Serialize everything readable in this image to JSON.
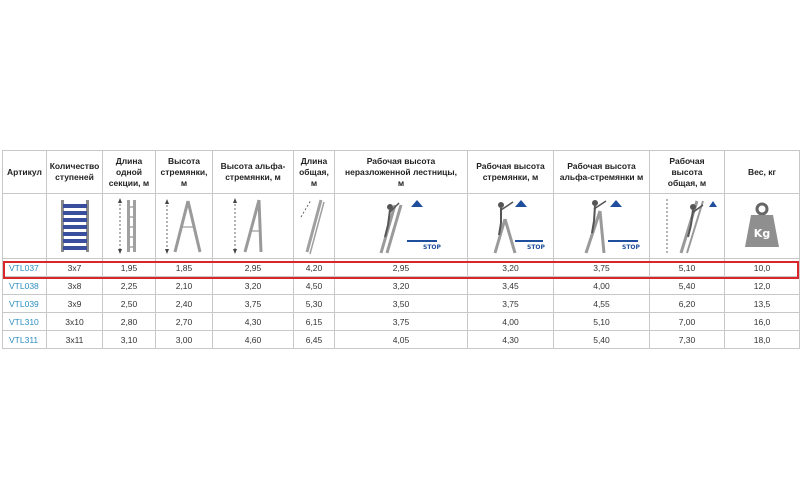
{
  "columns": [
    {
      "key": "sku",
      "label": "Артикул",
      "icon": ""
    },
    {
      "key": "steps",
      "label": "Количество\nступеней",
      "icon": "ladder-rungs-icon"
    },
    {
      "key": "section_length",
      "label": "Длина\nодной\nсекции, м",
      "icon": "section-length-icon"
    },
    {
      "key": "stepladder_height",
      "label": "Высота\nстремянки,\nм",
      "icon": "stepladder-height-icon"
    },
    {
      "key": "alpha_height",
      "label": "Высота альфа-\nстремянки, м",
      "icon": "alpha-stepladder-height-icon"
    },
    {
      "key": "total_length",
      "label": "Длина\nобщая,\nм",
      "icon": "total-length-icon"
    },
    {
      "key": "work_height_folded",
      "label": "Рабочая высота\nнеразложенной лестницы,\nм",
      "icon": "worker-folded-ladder-icon"
    },
    {
      "key": "work_height_stepladder",
      "label": "Рабочая высота\nстремянки, м",
      "icon": "worker-stepladder-icon"
    },
    {
      "key": "work_height_alpha",
      "label": "Рабочая высота\nальфа-стремянки м",
      "icon": "worker-alpha-stepladder-icon"
    },
    {
      "key": "work_height_total",
      "label": "Рабочая\nвысота\nобщая, м",
      "icon": "worker-extended-ladder-icon"
    },
    {
      "key": "weight",
      "label": "Вес, кг",
      "icon": "weight-kg-icon"
    }
  ],
  "icon_text": {
    "stop": "STOP",
    "kg": "Kg"
  },
  "rows": [
    [
      "VTL037",
      "3x7",
      "1,95",
      "1,85",
      "2,95",
      "4,20",
      "2,95",
      "3,20",
      "3,75",
      "5,10",
      "10,0"
    ],
    [
      "VTL038",
      "3x8",
      "2,25",
      "2,10",
      "3,20",
      "4,50",
      "3,20",
      "3,45",
      "4,00",
      "5,40",
      "12,0"
    ],
    [
      "VTL039",
      "3x9",
      "2,50",
      "2,40",
      "3,75",
      "5,30",
      "3,50",
      "3,75",
      "4,55",
      "6,20",
      "13,5"
    ],
    [
      "VTL310",
      "3x10",
      "2,80",
      "2,70",
      "4,30",
      "6,15",
      "3,75",
      "4,00",
      "5,10",
      "7,00",
      "16,0"
    ],
    [
      "VTL311",
      "3x11",
      "3,10",
      "3,00",
      "4,60",
      "6,45",
      "4,05",
      "4,30",
      "5,40",
      "7,30",
      "18,0"
    ]
  ],
  "highlighted_row": "VTL037",
  "colors": {
    "sku_link": "#2e8fc0",
    "highlight": "#d8262a",
    "stop_blue": "#1f4e9c",
    "rung_blue": "#3a4e9e"
  }
}
